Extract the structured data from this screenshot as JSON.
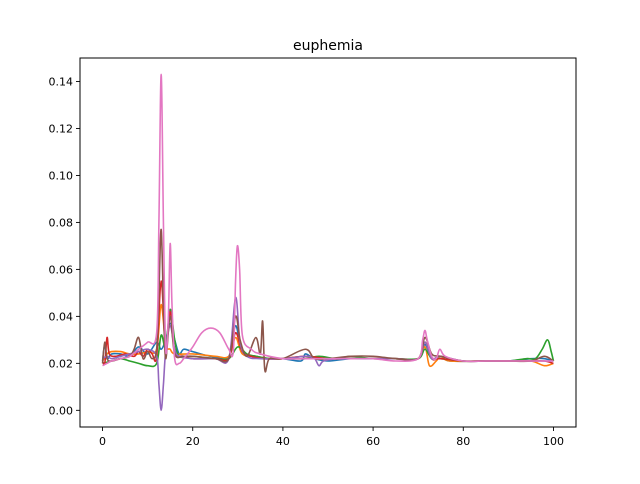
{
  "chart_data": {
    "type": "line",
    "title": "euphemia",
    "xlabel": "",
    "ylabel": "",
    "xlim": [
      -5,
      105
    ],
    "ylim": [
      -0.0071,
      0.15
    ],
    "xticks": [
      0,
      20,
      40,
      60,
      80,
      100
    ],
    "xtick_labels": [
      "0",
      "20",
      "40",
      "60",
      "80",
      "100"
    ],
    "yticks": [
      0.0,
      0.02,
      0.04,
      0.06,
      0.08,
      0.1,
      0.12,
      0.14
    ],
    "ytick_labels": [
      "0.00",
      "0.02",
      "0.04",
      "0.06",
      "0.08",
      "0.10",
      "0.12",
      "0.14"
    ],
    "grid": false,
    "legend": "none",
    "series": [
      {
        "color": "#1f77b4",
        "points": [
          [
            0,
            0.021
          ],
          [
            0.5,
            0.028
          ],
          [
            1,
            0.022
          ],
          [
            2,
            0.024
          ],
          [
            4,
            0.024
          ],
          [
            6,
            0.023
          ],
          [
            8,
            0.027
          ],
          [
            10,
            0.024
          ],
          [
            12,
            0.029
          ],
          [
            13,
            0.026
          ],
          [
            14,
            0.03
          ],
          [
            15,
            0.037
          ],
          [
            16,
            0.03
          ],
          [
            17,
            0.024
          ],
          [
            18,
            0.026
          ],
          [
            20,
            0.025
          ],
          [
            24,
            0.023
          ],
          [
            28,
            0.023
          ],
          [
            29.5,
            0.036
          ],
          [
            31,
            0.025
          ],
          [
            34,
            0.023
          ],
          [
            37,
            0.022
          ],
          [
            40,
            0.022
          ],
          [
            44,
            0.021
          ],
          [
            45,
            0.024
          ],
          [
            47,
            0.022
          ],
          [
            50,
            0.021
          ],
          [
            55,
            0.022
          ],
          [
            60,
            0.022
          ],
          [
            65,
            0.022
          ],
          [
            70,
            0.022
          ],
          [
            71.5,
            0.028
          ],
          [
            73,
            0.022
          ],
          [
            75,
            0.023
          ],
          [
            77,
            0.021
          ],
          [
            85,
            0.021
          ],
          [
            90,
            0.021
          ],
          [
            95,
            0.022
          ],
          [
            98,
            0.022
          ],
          [
            100,
            0.021
          ]
        ]
      },
      {
        "color": "#ff7f0e",
        "points": [
          [
            0,
            0.021
          ],
          [
            1,
            0.024
          ],
          [
            2,
            0.025
          ],
          [
            4,
            0.025
          ],
          [
            6,
            0.024
          ],
          [
            8,
            0.024
          ],
          [
            10,
            0.025
          ],
          [
            12,
            0.026
          ],
          [
            13,
            0.045
          ],
          [
            14,
            0.028
          ],
          [
            15,
            0.026
          ],
          [
            16,
            0.024
          ],
          [
            20,
            0.024
          ],
          [
            25,
            0.023
          ],
          [
            28,
            0.023
          ],
          [
            29.5,
            0.031
          ],
          [
            31,
            0.024
          ],
          [
            34,
            0.023
          ],
          [
            37,
            0.022
          ],
          [
            40,
            0.022
          ],
          [
            45,
            0.023
          ],
          [
            50,
            0.022
          ],
          [
            55,
            0.022
          ],
          [
            60,
            0.022
          ],
          [
            65,
            0.022
          ],
          [
            70,
            0.022
          ],
          [
            71.5,
            0.027
          ],
          [
            72.5,
            0.019
          ],
          [
            74,
            0.021
          ],
          [
            75,
            0.023
          ],
          [
            77,
            0.021
          ],
          [
            85,
            0.021
          ],
          [
            90,
            0.021
          ],
          [
            95,
            0.021
          ],
          [
            98,
            0.019
          ],
          [
            100,
            0.02
          ]
        ]
      },
      {
        "color": "#2ca02c",
        "points": [
          [
            0,
            0.02
          ],
          [
            2,
            0.021
          ],
          [
            4,
            0.022
          ],
          [
            6,
            0.021
          ],
          [
            8,
            0.02
          ],
          [
            10,
            0.019
          ],
          [
            12,
            0.02
          ],
          [
            13,
            0.032
          ],
          [
            14,
            0.027
          ],
          [
            15,
            0.043
          ],
          [
            16,
            0.03
          ],
          [
            17,
            0.023
          ],
          [
            20,
            0.023
          ],
          [
            25,
            0.022
          ],
          [
            28,
            0.022
          ],
          [
            30,
            0.027
          ],
          [
            32,
            0.024
          ],
          [
            34,
            0.023
          ],
          [
            37,
            0.022
          ],
          [
            40,
            0.022
          ],
          [
            45,
            0.022
          ],
          [
            48,
            0.023
          ],
          [
            52,
            0.022
          ],
          [
            55,
            0.023
          ],
          [
            60,
            0.022
          ],
          [
            65,
            0.022
          ],
          [
            70,
            0.022
          ],
          [
            71.5,
            0.026
          ],
          [
            73,
            0.022
          ],
          [
            75,
            0.022
          ],
          [
            80,
            0.021
          ],
          [
            85,
            0.021
          ],
          [
            90,
            0.021
          ],
          [
            94,
            0.022
          ],
          [
            96,
            0.022
          ],
          [
            97.5,
            0.026
          ],
          [
            98.7,
            0.03
          ],
          [
            99.5,
            0.025
          ],
          [
            100,
            0.021
          ]
        ]
      },
      {
        "color": "#d62728",
        "points": [
          [
            0,
            0.021
          ],
          [
            0.5,
            0.02
          ],
          [
            1,
            0.031
          ],
          [
            1.5,
            0.024
          ],
          [
            3,
            0.023
          ],
          [
            5,
            0.024
          ],
          [
            7,
            0.023
          ],
          [
            8,
            0.025
          ],
          [
            9,
            0.023
          ],
          [
            10,
            0.026
          ],
          [
            11,
            0.024
          ],
          [
            12,
            0.023
          ],
          [
            13,
            0.055
          ],
          [
            14,
            0.026
          ],
          [
            15,
            0.042
          ],
          [
            16,
            0.025
          ],
          [
            18,
            0.023
          ],
          [
            20,
            0.022
          ],
          [
            25,
            0.022
          ],
          [
            28,
            0.022
          ],
          [
            29.5,
            0.033
          ],
          [
            31,
            0.025
          ],
          [
            33,
            0.023
          ],
          [
            36,
            0.022
          ],
          [
            40,
            0.022
          ],
          [
            45,
            0.023
          ],
          [
            50,
            0.022
          ],
          [
            55,
            0.022
          ],
          [
            60,
            0.022
          ],
          [
            65,
            0.022
          ],
          [
            70,
            0.022
          ],
          [
            71.5,
            0.029
          ],
          [
            73,
            0.022
          ],
          [
            75,
            0.022
          ],
          [
            80,
            0.021
          ],
          [
            85,
            0.021
          ],
          [
            90,
            0.021
          ],
          [
            95,
            0.021
          ],
          [
            98,
            0.021
          ],
          [
            100,
            0.02
          ]
        ]
      },
      {
        "color": "#9467bd",
        "points": [
          [
            0,
            0.022
          ],
          [
            1,
            0.023
          ],
          [
            2,
            0.022
          ],
          [
            4,
            0.023
          ],
          [
            6,
            0.024
          ],
          [
            8,
            0.025
          ],
          [
            10,
            0.026
          ],
          [
            12,
            0.023
          ],
          [
            12.5,
            0.011
          ],
          [
            13,
            0.0
          ],
          [
            13.5,
            0.011
          ],
          [
            14,
            0.025
          ],
          [
            15,
            0.036
          ],
          [
            16,
            0.026
          ],
          [
            17,
            0.023
          ],
          [
            20,
            0.022
          ],
          [
            25,
            0.022
          ],
          [
            28,
            0.022
          ],
          [
            29.5,
            0.048
          ],
          [
            30.5,
            0.029
          ],
          [
            32,
            0.023
          ],
          [
            35,
            0.022
          ],
          [
            40,
            0.022
          ],
          [
            45,
            0.023
          ],
          [
            47,
            0.022
          ],
          [
            48,
            0.019
          ],
          [
            49,
            0.021
          ],
          [
            52,
            0.022
          ],
          [
            55,
            0.022
          ],
          [
            60,
            0.022
          ],
          [
            65,
            0.022
          ],
          [
            70,
            0.022
          ],
          [
            71.5,
            0.029
          ],
          [
            73,
            0.022
          ],
          [
            75,
            0.023
          ],
          [
            80,
            0.021
          ],
          [
            85,
            0.021
          ],
          [
            90,
            0.021
          ],
          [
            95,
            0.021
          ],
          [
            98,
            0.021
          ],
          [
            100,
            0.021
          ]
        ]
      },
      {
        "color": "#8c564b",
        "points": [
          [
            0,
            0.02
          ],
          [
            0.5,
            0.029
          ],
          [
            1,
            0.022
          ],
          [
            2,
            0.021
          ],
          [
            4,
            0.022
          ],
          [
            6,
            0.023
          ],
          [
            7,
            0.026
          ],
          [
            8,
            0.031
          ],
          [
            9,
            0.022
          ],
          [
            10,
            0.025
          ],
          [
            11,
            0.022
          ],
          [
            12,
            0.026
          ],
          [
            12.5,
            0.05
          ],
          [
            13,
            0.077
          ],
          [
            13.5,
            0.045
          ],
          [
            14,
            0.022
          ],
          [
            15,
            0.04
          ],
          [
            16,
            0.024
          ],
          [
            18,
            0.023
          ],
          [
            20,
            0.023
          ],
          [
            25,
            0.022
          ],
          [
            28,
            0.022
          ],
          [
            29.5,
            0.04
          ],
          [
            30.5,
            0.03
          ],
          [
            32,
            0.023
          ],
          [
            34,
            0.031
          ],
          [
            35,
            0.024
          ],
          [
            35.5,
            0.038
          ],
          [
            36,
            0.017
          ],
          [
            37,
            0.022
          ],
          [
            40,
            0.022
          ],
          [
            45,
            0.026
          ],
          [
            47,
            0.022
          ],
          [
            50,
            0.022
          ],
          [
            55,
            0.023
          ],
          [
            60,
            0.023
          ],
          [
            65,
            0.022
          ],
          [
            70,
            0.022
          ],
          [
            71.5,
            0.031
          ],
          [
            73,
            0.024
          ],
          [
            75,
            0.023
          ],
          [
            80,
            0.021
          ],
          [
            85,
            0.021
          ],
          [
            90,
            0.021
          ],
          [
            95,
            0.021
          ],
          [
            98,
            0.023
          ],
          [
            100,
            0.021
          ]
        ]
      },
      {
        "color": "#e377c2",
        "points": [
          [
            0,
            0.019
          ],
          [
            1,
            0.02
          ],
          [
            2,
            0.021
          ],
          [
            4,
            0.022
          ],
          [
            6,
            0.023
          ],
          [
            8,
            0.026
          ],
          [
            10,
            0.029
          ],
          [
            12,
            0.033
          ],
          [
            12.5,
            0.08
          ],
          [
            13,
            0.143
          ],
          [
            13.5,
            0.08
          ],
          [
            14,
            0.026
          ],
          [
            14.6,
            0.04
          ],
          [
            15,
            0.071
          ],
          [
            15.4,
            0.045
          ],
          [
            16,
            0.022
          ],
          [
            17,
            0.02
          ],
          [
            18,
            0.022
          ],
          [
            20,
            0.027
          ],
          [
            22,
            0.033
          ],
          [
            24,
            0.035
          ],
          [
            26,
            0.033
          ],
          [
            28,
            0.026
          ],
          [
            29,
            0.025
          ],
          [
            29.5,
            0.055
          ],
          [
            29.9,
            0.07
          ],
          [
            30.4,
            0.06
          ],
          [
            31,
            0.032
          ],
          [
            33,
            0.026
          ],
          [
            35,
            0.024
          ],
          [
            40,
            0.022
          ],
          [
            45,
            0.022
          ],
          [
            50,
            0.022
          ],
          [
            55,
            0.022
          ],
          [
            60,
            0.022
          ],
          [
            65,
            0.021
          ],
          [
            70,
            0.022
          ],
          [
            71,
            0.03
          ],
          [
            71.5,
            0.034
          ],
          [
            72,
            0.03
          ],
          [
            73,
            0.023
          ],
          [
            74,
            0.022
          ],
          [
            74.8,
            0.026
          ],
          [
            76,
            0.023
          ],
          [
            80,
            0.021
          ],
          [
            85,
            0.021
          ],
          [
            90,
            0.021
          ],
          [
            95,
            0.021
          ],
          [
            98,
            0.021
          ],
          [
            100,
            0.021
          ]
        ]
      }
    ]
  }
}
